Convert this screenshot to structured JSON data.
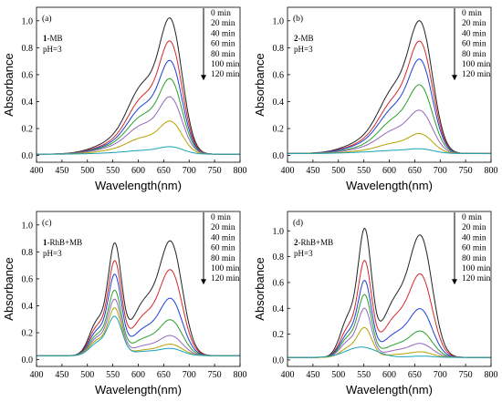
{
  "chart_data": [
    {
      "type": "line",
      "panel_label": "(a)",
      "sample_bold": "1",
      "sample_rest": "-MB",
      "ph_label": "pH=3",
      "xlabel": "Wavelength(nm)",
      "ylabel": "Absorbance",
      "xlim": [
        400,
        800
      ],
      "ylim": [
        -0.05,
        1.1
      ],
      "xticks": [
        "400",
        "450",
        "500",
        "550",
        "600",
        "650",
        "700",
        "750",
        "800"
      ],
      "yticks": [
        "0.0",
        "0.2",
        "0.4",
        "0.6",
        "0.8",
        "1.0"
      ],
      "legend_position": "top-right",
      "series": [
        {
          "name": "0 min",
          "color": "#222222",
          "baseline": 0.01,
          "peaks": [
            {
              "c": 665,
              "h": 0.9,
              "w": 22
            },
            {
              "c": 612,
              "h": 0.44,
              "w": 30
            },
            {
              "c": 565,
              "h": 0.1,
              "w": 45
            }
          ]
        },
        {
          "name": "20 min",
          "color": "#d62728",
          "baseline": 0.01,
          "peaks": [
            {
              "c": 665,
              "h": 0.75,
              "w": 22
            },
            {
              "c": 612,
              "h": 0.36,
              "w": 30
            },
            {
              "c": 565,
              "h": 0.08,
              "w": 45
            }
          ]
        },
        {
          "name": "40 min",
          "color": "#1f3fd6",
          "baseline": 0.01,
          "peaks": [
            {
              "c": 665,
              "h": 0.62,
              "w": 22
            },
            {
              "c": 612,
              "h": 0.3,
              "w": 30
            },
            {
              "c": 565,
              "h": 0.07,
              "w": 45
            }
          ]
        },
        {
          "name": "60 min",
          "color": "#2ca02c",
          "baseline": 0.01,
          "peaks": [
            {
              "c": 665,
              "h": 0.5,
              "w": 22
            },
            {
              "c": 612,
              "h": 0.24,
              "w": 30
            },
            {
              "c": 565,
              "h": 0.06,
              "w": 45
            }
          ]
        },
        {
          "name": "80 min",
          "color": "#9467bd",
          "baseline": 0.01,
          "peaks": [
            {
              "c": 665,
              "h": 0.38,
              "w": 22
            },
            {
              "c": 612,
              "h": 0.18,
              "w": 30
            },
            {
              "c": 565,
              "h": 0.05,
              "w": 45
            }
          ]
        },
        {
          "name": "100 min",
          "color": "#b8a000",
          "baseline": 0.01,
          "peaks": [
            {
              "c": 665,
              "h": 0.22,
              "w": 22
            },
            {
              "c": 612,
              "h": 0.1,
              "w": 30
            },
            {
              "c": 565,
              "h": 0.03,
              "w": 45
            }
          ]
        },
        {
          "name": "120 min",
          "color": "#17a2b8",
          "baseline": 0.01,
          "peaks": [
            {
              "c": 665,
              "h": 0.05,
              "w": 24
            },
            {
              "c": 612,
              "h": 0.02,
              "w": 30
            },
            {
              "c": 565,
              "h": 0.01,
              "w": 45
            }
          ]
        }
      ]
    },
    {
      "type": "line",
      "panel_label": "(b)",
      "sample_bold": "2",
      "sample_rest": "-MB",
      "ph_label": "pH=3",
      "xlabel": "Wavelength(nm)",
      "ylabel": "Absorbance",
      "xlim": [
        400,
        800
      ],
      "ylim": [
        -0.05,
        1.1
      ],
      "xticks": [
        "400",
        "450",
        "500",
        "550",
        "600",
        "650",
        "700",
        "750",
        "800"
      ],
      "yticks": [
        "0.0",
        "0.2",
        "0.4",
        "0.6",
        "0.8",
        "1.0"
      ],
      "legend_position": "top-right",
      "series": [
        {
          "name": "0 min",
          "color": "#222222",
          "baseline": 0.015,
          "peaks": [
            {
              "c": 663,
              "h": 0.87,
              "w": 23
            },
            {
              "c": 612,
              "h": 0.4,
              "w": 30
            },
            {
              "c": 565,
              "h": 0.1,
              "w": 45
            }
          ]
        },
        {
          "name": "20 min",
          "color": "#d62728",
          "baseline": 0.015,
          "peaks": [
            {
              "c": 663,
              "h": 0.74,
              "w": 23
            },
            {
              "c": 612,
              "h": 0.33,
              "w": 30
            },
            {
              "c": 565,
              "h": 0.08,
              "w": 45
            }
          ]
        },
        {
          "name": "40 min",
          "color": "#1f3fd6",
          "baseline": 0.015,
          "peaks": [
            {
              "c": 663,
              "h": 0.62,
              "w": 23
            },
            {
              "c": 612,
              "h": 0.28,
              "w": 30
            },
            {
              "c": 565,
              "h": 0.07,
              "w": 45
            }
          ]
        },
        {
          "name": "60 min",
          "color": "#2ca02c",
          "baseline": 0.015,
          "peaks": [
            {
              "c": 663,
              "h": 0.45,
              "w": 23
            },
            {
              "c": 612,
              "h": 0.21,
              "w": 30
            },
            {
              "c": 565,
              "h": 0.05,
              "w": 45
            }
          ]
        },
        {
          "name": "80 min",
          "color": "#9467bd",
          "baseline": 0.015,
          "peaks": [
            {
              "c": 663,
              "h": 0.28,
              "w": 23
            },
            {
              "c": 612,
              "h": 0.14,
              "w": 30
            },
            {
              "c": 565,
              "h": 0.04,
              "w": 45
            }
          ]
        },
        {
          "name": "100 min",
          "color": "#b8a000",
          "baseline": 0.015,
          "peaks": [
            {
              "c": 663,
              "h": 0.13,
              "w": 23
            },
            {
              "c": 612,
              "h": 0.06,
              "w": 30
            },
            {
              "c": 565,
              "h": 0.02,
              "w": 45
            }
          ]
        },
        {
          "name": "120 min",
          "color": "#17a2b8",
          "baseline": 0.015,
          "peaks": [
            {
              "c": 663,
              "h": 0.03,
              "w": 25
            },
            {
              "c": 612,
              "h": 0.015,
              "w": 30
            },
            {
              "c": 565,
              "h": 0.01,
              "w": 45
            }
          ]
        }
      ]
    },
    {
      "type": "line",
      "panel_label": "(c)",
      "sample_bold": "1",
      "sample_rest": "-RhB+MB",
      "ph_label": "pH=3",
      "xlabel": "Wavelength(nm)",
      "ylabel": "Absorbance",
      "xlim": [
        400,
        800
      ],
      "ylim": [
        -0.05,
        1.1
      ],
      "xticks": [
        "400",
        "450",
        "500",
        "550",
        "600",
        "650",
        "700",
        "750",
        "800"
      ],
      "yticks": [
        "0.0",
        "0.2",
        "0.4",
        "0.6",
        "0.8",
        "1.0"
      ],
      "legend_position": "top-right",
      "series": [
        {
          "name": "0 min",
          "color": "#222222",
          "baseline": 0.03,
          "peaks": [
            {
              "c": 554,
              "h": 0.78,
              "w": 13
            },
            {
              "c": 520,
              "h": 0.25,
              "w": 16
            },
            {
              "c": 665,
              "h": 0.8,
              "w": 22
            },
            {
              "c": 612,
              "h": 0.38,
              "w": 26
            }
          ]
        },
        {
          "name": "20 min",
          "color": "#d62728",
          "baseline": 0.03,
          "peaks": [
            {
              "c": 554,
              "h": 0.66,
              "w": 13
            },
            {
              "c": 520,
              "h": 0.21,
              "w": 16
            },
            {
              "c": 665,
              "h": 0.6,
              "w": 22
            },
            {
              "c": 612,
              "h": 0.28,
              "w": 26
            }
          ]
        },
        {
          "name": "40 min",
          "color": "#1f3fd6",
          "baseline": 0.03,
          "peaks": [
            {
              "c": 554,
              "h": 0.57,
              "w": 13
            },
            {
              "c": 520,
              "h": 0.18,
              "w": 16
            },
            {
              "c": 665,
              "h": 0.4,
              "w": 22
            },
            {
              "c": 612,
              "h": 0.19,
              "w": 26
            }
          ]
        },
        {
          "name": "60 min",
          "color": "#2ca02c",
          "baseline": 0.03,
          "peaks": [
            {
              "c": 554,
              "h": 0.46,
              "w": 13
            },
            {
              "c": 520,
              "h": 0.15,
              "w": 16
            },
            {
              "c": 665,
              "h": 0.25,
              "w": 22
            },
            {
              "c": 612,
              "h": 0.12,
              "w": 26
            }
          ]
        },
        {
          "name": "80 min",
          "color": "#9467bd",
          "baseline": 0.03,
          "peaks": [
            {
              "c": 554,
              "h": 0.4,
              "w": 13
            },
            {
              "c": 520,
              "h": 0.13,
              "w": 16
            },
            {
              "c": 665,
              "h": 0.14,
              "w": 22
            },
            {
              "c": 612,
              "h": 0.07,
              "w": 26
            }
          ]
        },
        {
          "name": "100 min",
          "color": "#b8a000",
          "baseline": 0.03,
          "peaks": [
            {
              "c": 554,
              "h": 0.34,
              "w": 13
            },
            {
              "c": 520,
              "h": 0.11,
              "w": 16
            },
            {
              "c": 665,
              "h": 0.08,
              "w": 22
            },
            {
              "c": 612,
              "h": 0.04,
              "w": 26
            }
          ]
        },
        {
          "name": "120 min",
          "color": "#17a2b8",
          "baseline": 0.03,
          "peaks": [
            {
              "c": 554,
              "h": 0.28,
              "w": 14
            },
            {
              "c": 520,
              "h": 0.09,
              "w": 16
            },
            {
              "c": 665,
              "h": 0.05,
              "w": 22
            },
            {
              "c": 612,
              "h": 0.03,
              "w": 26
            }
          ]
        }
      ]
    },
    {
      "type": "line",
      "panel_label": "(d)",
      "sample_bold": "2",
      "sample_rest": "-RhB+MB",
      "ph_label": "pH=3",
      "xlabel": "Wavelength(nm)",
      "ylabel": "Absorbance",
      "xlim": [
        400,
        800
      ],
      "ylim": [
        -0.05,
        1.15
      ],
      "xticks": [
        "400",
        "450",
        "500",
        "550",
        "600",
        "650",
        "700",
        "750",
        "800"
      ],
      "yticks": [
        "0.0",
        "0.2",
        "0.4",
        "0.6",
        "0.8",
        "1.0"
      ],
      "legend_position": "top-right",
      "series": [
        {
          "name": "0 min",
          "color": "#222222",
          "baseline": 0.02,
          "peaks": [
            {
              "c": 552,
              "h": 0.93,
              "w": 13
            },
            {
              "c": 520,
              "h": 0.3,
              "w": 16
            },
            {
              "c": 663,
              "h": 0.88,
              "w": 22
            },
            {
              "c": 612,
              "h": 0.42,
              "w": 26
            }
          ]
        },
        {
          "name": "20 min",
          "color": "#d62728",
          "baseline": 0.02,
          "peaks": [
            {
              "c": 552,
              "h": 0.7,
              "w": 13
            },
            {
              "c": 520,
              "h": 0.22,
              "w": 16
            },
            {
              "c": 663,
              "h": 0.6,
              "w": 22
            },
            {
              "c": 612,
              "h": 0.29,
              "w": 26
            }
          ]
        },
        {
          "name": "40 min",
          "color": "#1f3fd6",
          "baseline": 0.02,
          "peaks": [
            {
              "c": 552,
              "h": 0.56,
              "w": 13
            },
            {
              "c": 520,
              "h": 0.18,
              "w": 16
            },
            {
              "c": 663,
              "h": 0.35,
              "w": 22
            },
            {
              "c": 612,
              "h": 0.17,
              "w": 26
            }
          ]
        },
        {
          "name": "60 min",
          "color": "#2ca02c",
          "baseline": 0.02,
          "peaks": [
            {
              "c": 552,
              "h": 0.46,
              "w": 13
            },
            {
              "c": 520,
              "h": 0.15,
              "w": 16
            },
            {
              "c": 663,
              "h": 0.19,
              "w": 22
            },
            {
              "c": 612,
              "h": 0.09,
              "w": 26
            }
          ]
        },
        {
          "name": "80 min",
          "color": "#9467bd",
          "baseline": 0.02,
          "peaks": [
            {
              "c": 552,
              "h": 0.36,
              "w": 13
            },
            {
              "c": 520,
              "h": 0.12,
              "w": 16
            },
            {
              "c": 663,
              "h": 0.1,
              "w": 22
            },
            {
              "c": 612,
              "h": 0.05,
              "w": 26
            }
          ]
        },
        {
          "name": "100 min",
          "color": "#b8a000",
          "baseline": 0.02,
          "peaks": [
            {
              "c": 552,
              "h": 0.22,
              "w": 14
            },
            {
              "c": 520,
              "h": 0.07,
              "w": 16
            },
            {
              "c": 663,
              "h": 0.04,
              "w": 22
            },
            {
              "c": 612,
              "h": 0.02,
              "w": 26
            }
          ]
        },
        {
          "name": "120 min",
          "color": "#17a2b8",
          "baseline": 0.02,
          "peaks": [
            {
              "c": 545,
              "h": 0.08,
              "w": 30
            },
            {
              "c": 663,
              "h": 0.01,
              "w": 22
            }
          ]
        }
      ]
    }
  ]
}
